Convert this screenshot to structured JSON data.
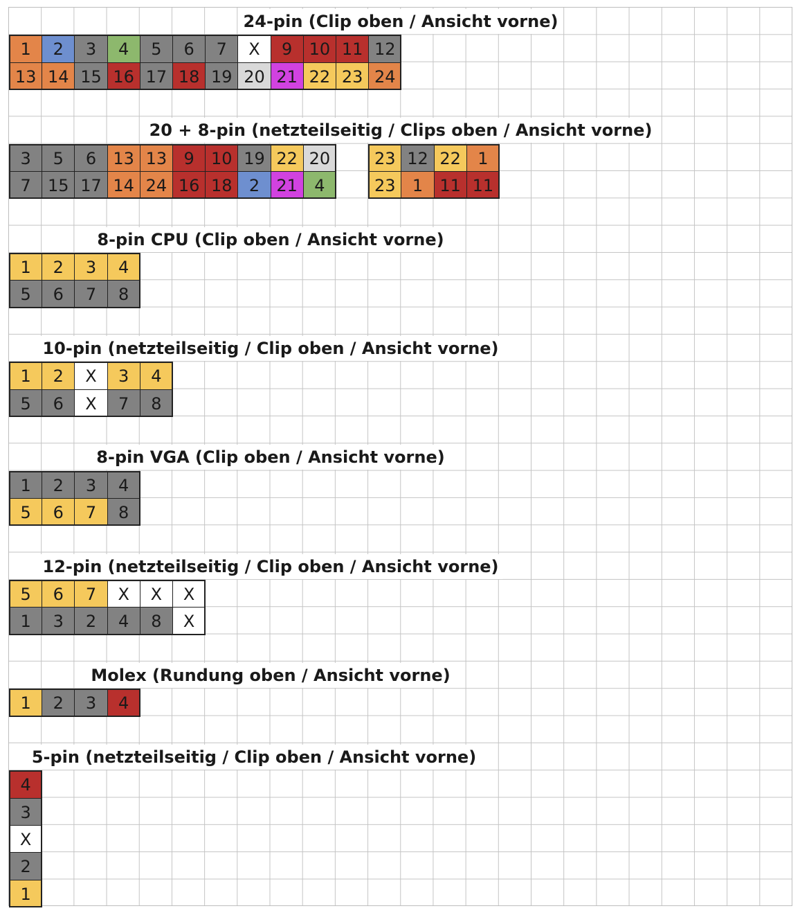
{
  "colors": {
    "orange": "#e38549",
    "blue": "#6e8fcf",
    "grey": "#828282",
    "green": "#8db86d",
    "white": "#ffffff",
    "red": "#b8302d",
    "lightgrey": "#d9d9d9",
    "magenta": "#d142e0",
    "yellow": "#f5c95c"
  },
  "connectors": [
    {
      "id": "24pin",
      "title": "24-pin (Clip oben / Ansicht vorne)",
      "groups": [
        {
          "rows": [
            [
              {
                "t": "1",
                "c": "orange"
              },
              {
                "t": "2",
                "c": "blue"
              },
              {
                "t": "3",
                "c": "grey"
              },
              {
                "t": "4",
                "c": "green"
              },
              {
                "t": "5",
                "c": "grey"
              },
              {
                "t": "6",
                "c": "grey"
              },
              {
                "t": "7",
                "c": "grey"
              },
              {
                "t": "X",
                "c": "white"
              },
              {
                "t": "9",
                "c": "red"
              },
              {
                "t": "10",
                "c": "red"
              },
              {
                "t": "11",
                "c": "red"
              },
              {
                "t": "12",
                "c": "grey"
              }
            ],
            [
              {
                "t": "13",
                "c": "orange"
              },
              {
                "t": "14",
                "c": "orange"
              },
              {
                "t": "15",
                "c": "grey"
              },
              {
                "t": "16",
                "c": "red"
              },
              {
                "t": "17",
                "c": "grey"
              },
              {
                "t": "18",
                "c": "red"
              },
              {
                "t": "19",
                "c": "grey"
              },
              {
                "t": "20",
                "c": "lightgrey"
              },
              {
                "t": "21",
                "c": "magenta"
              },
              {
                "t": "22",
                "c": "yellow"
              },
              {
                "t": "23",
                "c": "yellow"
              },
              {
                "t": "24",
                "c": "orange"
              }
            ]
          ]
        }
      ]
    },
    {
      "id": "20plus8pin",
      "title": "20 + 8-pin (netzteilseitig / Clips oben / Ansicht vorne)",
      "groups": [
        {
          "rows": [
            [
              {
                "t": "3",
                "c": "grey"
              },
              {
                "t": "5",
                "c": "grey"
              },
              {
                "t": "6",
                "c": "grey"
              },
              {
                "t": "13",
                "c": "orange"
              },
              {
                "t": "13",
                "c": "orange"
              },
              {
                "t": "9",
                "c": "red"
              },
              {
                "t": "10",
                "c": "red"
              },
              {
                "t": "19",
                "c": "grey"
              },
              {
                "t": "22",
                "c": "yellow"
              },
              {
                "t": "20",
                "c": "lightgrey"
              }
            ],
            [
              {
                "t": "7",
                "c": "grey"
              },
              {
                "t": "15",
                "c": "grey"
              },
              {
                "t": "17",
                "c": "grey"
              },
              {
                "t": "14",
                "c": "orange"
              },
              {
                "t": "24",
                "c": "orange"
              },
              {
                "t": "16",
                "c": "red"
              },
              {
                "t": "18",
                "c": "red"
              },
              {
                "t": "2",
                "c": "blue"
              },
              {
                "t": "21",
                "c": "magenta"
              },
              {
                "t": "4",
                "c": "green"
              }
            ]
          ]
        },
        {
          "rows": [
            [
              {
                "t": "23",
                "c": "yellow"
              },
              {
                "t": "12",
                "c": "grey"
              },
              {
                "t": "22",
                "c": "yellow"
              },
              {
                "t": "1",
                "c": "orange"
              }
            ],
            [
              {
                "t": "23",
                "c": "yellow"
              },
              {
                "t": "1",
                "c": "orange"
              },
              {
                "t": "11",
                "c": "red"
              },
              {
                "t": "11",
                "c": "red"
              }
            ]
          ]
        }
      ]
    },
    {
      "id": "8pin-cpu",
      "title": "8-pin CPU (Clip oben / Ansicht vorne)",
      "groups": [
        {
          "rows": [
            [
              {
                "t": "1",
                "c": "yellow"
              },
              {
                "t": "2",
                "c": "yellow"
              },
              {
                "t": "3",
                "c": "yellow"
              },
              {
                "t": "4",
                "c": "yellow"
              }
            ],
            [
              {
                "t": "5",
                "c": "grey"
              },
              {
                "t": "6",
                "c": "grey"
              },
              {
                "t": "7",
                "c": "grey"
              },
              {
                "t": "8",
                "c": "grey"
              }
            ]
          ]
        }
      ]
    },
    {
      "id": "10pin",
      "title": "10-pin (netzteilseitig / Clip oben / Ansicht vorne)",
      "groups": [
        {
          "rows": [
            [
              {
                "t": "1",
                "c": "yellow"
              },
              {
                "t": "2",
                "c": "yellow"
              },
              {
                "t": "X",
                "c": "white"
              },
              {
                "t": "3",
                "c": "yellow"
              },
              {
                "t": "4",
                "c": "yellow"
              }
            ],
            [
              {
                "t": "5",
                "c": "grey"
              },
              {
                "t": "6",
                "c": "grey"
              },
              {
                "t": "X",
                "c": "white"
              },
              {
                "t": "7",
                "c": "grey"
              },
              {
                "t": "8",
                "c": "grey"
              }
            ]
          ]
        }
      ]
    },
    {
      "id": "8pin-vga",
      "title": "8-pin VGA (Clip oben / Ansicht vorne)",
      "groups": [
        {
          "rows": [
            [
              {
                "t": "1",
                "c": "grey"
              },
              {
                "t": "2",
                "c": "grey"
              },
              {
                "t": "3",
                "c": "grey"
              },
              {
                "t": "4",
                "c": "grey"
              }
            ],
            [
              {
                "t": "5",
                "c": "yellow"
              },
              {
                "t": "6",
                "c": "yellow"
              },
              {
                "t": "7",
                "c": "yellow"
              },
              {
                "t": "8",
                "c": "grey"
              }
            ]
          ]
        }
      ]
    },
    {
      "id": "12pin",
      "title": "12-pin (netzteilseitig / Clip oben / Ansicht vorne)",
      "groups": [
        {
          "rows": [
            [
              {
                "t": "5",
                "c": "yellow"
              },
              {
                "t": "6",
                "c": "yellow"
              },
              {
                "t": "7",
                "c": "yellow"
              },
              {
                "t": "X",
                "c": "white"
              },
              {
                "t": "X",
                "c": "white"
              },
              {
                "t": "X",
                "c": "white"
              }
            ],
            [
              {
                "t": "1",
                "c": "grey"
              },
              {
                "t": "3",
                "c": "grey"
              },
              {
                "t": "2",
                "c": "grey"
              },
              {
                "t": "4",
                "c": "grey"
              },
              {
                "t": "8",
                "c": "grey"
              },
              {
                "t": "X",
                "c": "white"
              }
            ]
          ]
        }
      ]
    },
    {
      "id": "molex",
      "title": "Molex (Rundung oben / Ansicht vorne)",
      "groups": [
        {
          "rows": [
            [
              {
                "t": "1",
                "c": "yellow"
              },
              {
                "t": "2",
                "c": "grey"
              },
              {
                "t": "3",
                "c": "grey"
              },
              {
                "t": "4",
                "c": "red"
              }
            ]
          ]
        }
      ]
    },
    {
      "id": "5pin",
      "title": "5-pin (netzteilseitig / Clip oben / Ansicht vorne)",
      "groups": [
        {
          "rows": [
            [
              {
                "t": "4",
                "c": "red"
              }
            ],
            [
              {
                "t": "3",
                "c": "grey"
              }
            ],
            [
              {
                "t": "X",
                "c": "white"
              }
            ],
            [
              {
                "t": "2",
                "c": "grey"
              }
            ],
            [
              {
                "t": "1",
                "c": "yellow"
              }
            ]
          ]
        }
      ]
    }
  ]
}
